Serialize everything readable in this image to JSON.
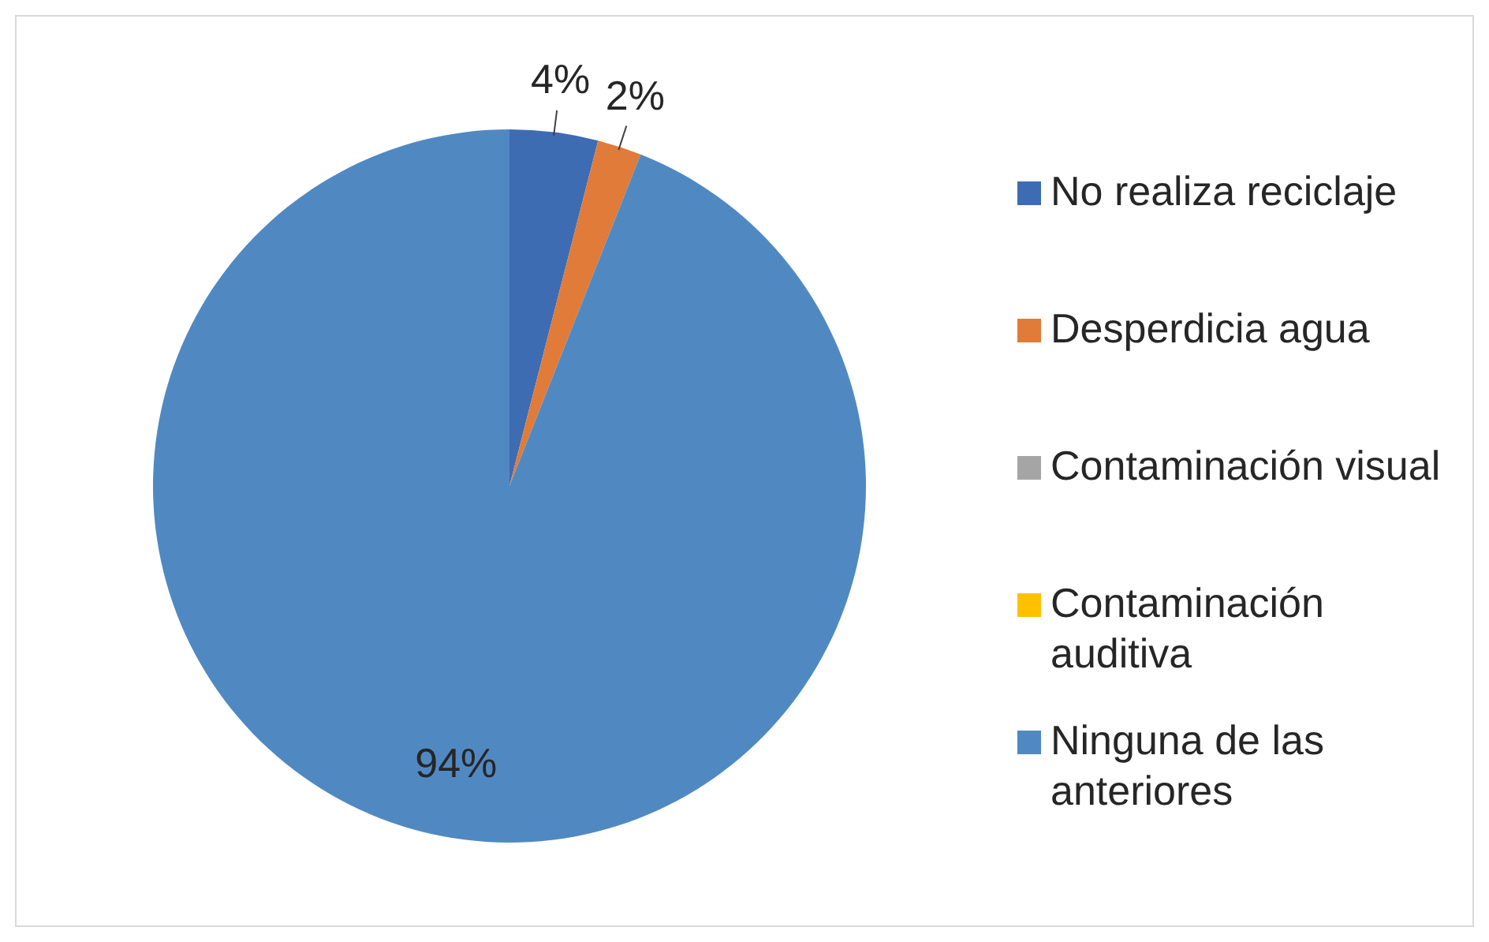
{
  "chart_data": {
    "type": "pie",
    "categories": [
      "No realiza reciclaje",
      "Desperdicia agua",
      "Contaminación visual",
      "Contaminación auditiva",
      "Ninguna de las anteriores"
    ],
    "values": [
      4,
      2,
      0,
      0,
      94
    ],
    "colors": [
      "#3e6cb3",
      "#e07b39",
      "#a5a5a5",
      "#ffc000",
      "#5089c2"
    ],
    "value_labels": [
      "4%",
      "2%",
      null,
      null,
      "94%"
    ],
    "legend": "right"
  }
}
